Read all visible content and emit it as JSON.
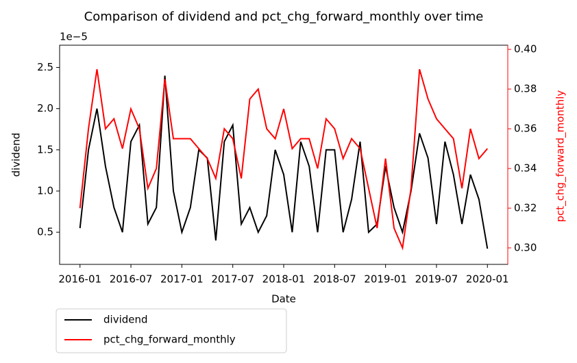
{
  "chart_data": {
    "type": "line",
    "title": "Comparison of dividend and pct_chg_forward_monthly over time",
    "x_label": "Date",
    "y_label": "dividend",
    "y2_label": "pct_chg_forward_monthly",
    "y_offset_label": "1e−5",
    "x": [
      "2016-01",
      "2016-02",
      "2016-03",
      "2016-04",
      "2016-05",
      "2016-06",
      "2016-07",
      "2016-08",
      "2016-09",
      "2016-10",
      "2016-11",
      "2016-12",
      "2017-01",
      "2017-02",
      "2017-03",
      "2017-04",
      "2017-05",
      "2017-06",
      "2017-07",
      "2017-08",
      "2017-09",
      "2017-10",
      "2017-11",
      "2017-12",
      "2018-01",
      "2018-02",
      "2018-03",
      "2018-04",
      "2018-05",
      "2018-06",
      "2018-07",
      "2018-08",
      "2018-09",
      "2018-10",
      "2018-11",
      "2018-12",
      "2019-01",
      "2019-02",
      "2019-03",
      "2019-04",
      "2019-05",
      "2019-06",
      "2019-07",
      "2019-08",
      "2019-09",
      "2019-10",
      "2019-11",
      "2019-12",
      "2020-01"
    ],
    "series": [
      {
        "name": "dividend",
        "color": "#000000",
        "axis": "y",
        "values": [
          0.55,
          1.5,
          2.0,
          1.3,
          0.8,
          0.5,
          1.6,
          1.8,
          0.6,
          0.8,
          2.4,
          1.0,
          0.5,
          0.8,
          1.5,
          1.4,
          0.4,
          1.6,
          1.8,
          0.6,
          0.8,
          0.5,
          0.7,
          1.5,
          1.2,
          0.5,
          1.6,
          1.3,
          0.5,
          1.5,
          1.5,
          0.5,
          0.9,
          1.6,
          0.5,
          0.6,
          1.3,
          0.8,
          0.5,
          1.0,
          1.7,
          1.4,
          0.6,
          1.6,
          1.2,
          0.6,
          1.2,
          0.9,
          0.3
        ]
      },
      {
        "name": "pct_chg_forward_monthly",
        "color": "#ff0000",
        "axis": "y2",
        "values": [
          0.32,
          0.36,
          0.39,
          0.36,
          0.365,
          0.35,
          0.37,
          0.36,
          0.33,
          0.34,
          0.385,
          0.355,
          0.355,
          0.355,
          0.35,
          0.345,
          0.335,
          0.36,
          0.355,
          0.335,
          0.375,
          0.38,
          0.36,
          0.355,
          0.37,
          0.35,
          0.355,
          0.355,
          0.34,
          0.365,
          0.36,
          0.345,
          0.355,
          0.35,
          0.33,
          0.31,
          0.345,
          0.31,
          0.3,
          0.33,
          0.39,
          0.375,
          0.365,
          0.36,
          0.355,
          0.33,
          0.36,
          0.345,
          0.35
        ]
      }
    ],
    "xlim": [
      "2016-01",
      "2020-01"
    ],
    "xticks": [
      "2016-01",
      "2016-07",
      "2017-01",
      "2017-07",
      "2018-01",
      "2018-07",
      "2019-01",
      "2019-07",
      "2020-01"
    ],
    "ylim": [
      0.11,
      2.77
    ],
    "yticks": [
      0.5,
      {
        "value": 1,
        "label": "1.0"
      },
      1.5,
      {
        "value": 2,
        "label": "2.0"
      },
      2.5
    ],
    "y2lim": [
      0.2917,
      0.4021
    ],
    "y2ticks": [
      {
        "value": 0.3,
        "label": "0.30"
      },
      0.32,
      0.34,
      0.36,
      0.38,
      {
        "value": 0.4,
        "label": "0.40"
      }
    ],
    "y2color": "#ff0000",
    "legend": "below-left"
  }
}
